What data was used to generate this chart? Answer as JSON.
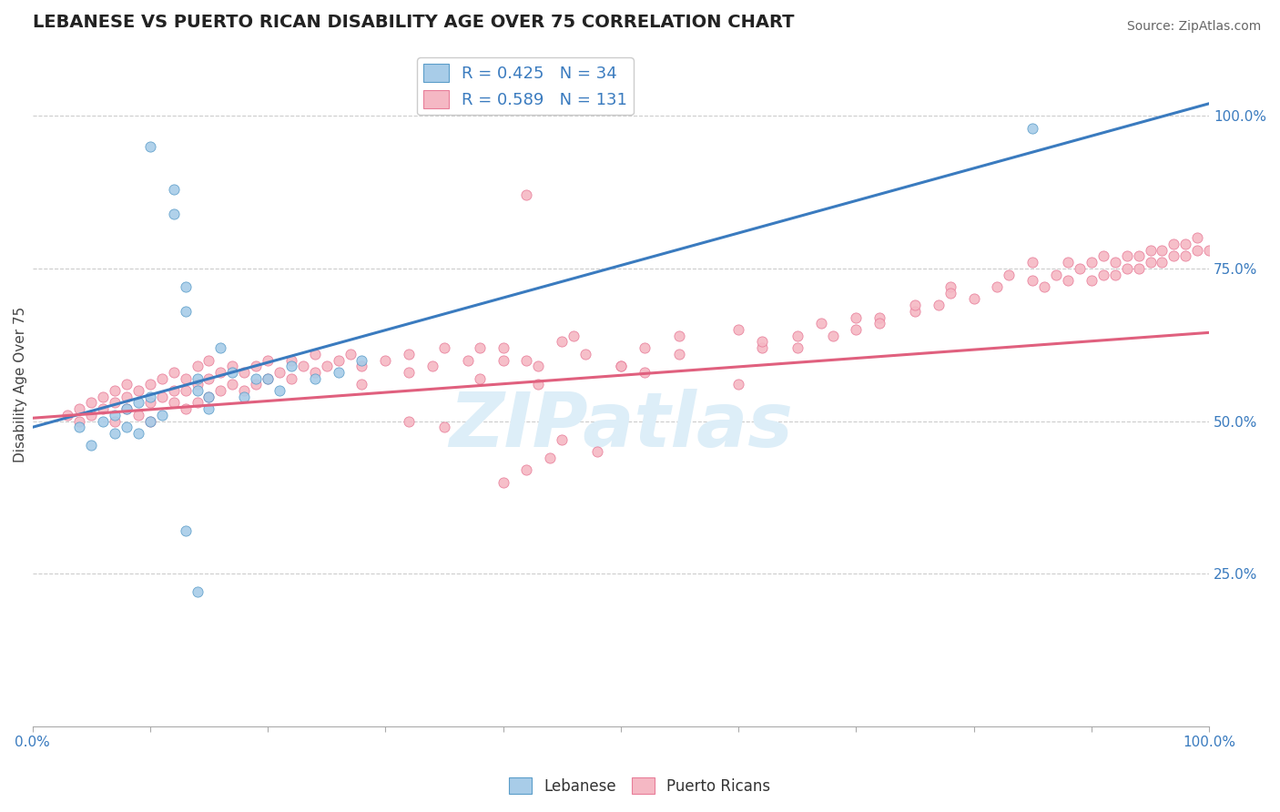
{
  "title": "LEBANESE VS PUERTO RICAN DISABILITY AGE OVER 75 CORRELATION CHART",
  "source": "Source: ZipAtlas.com",
  "ylabel": "Disability Age Over 75",
  "xlim": [
    0.0,
    1.0
  ],
  "ylim": [
    0.0,
    1.12
  ],
  "y_ticks_right": [
    0.25,
    0.5,
    0.75,
    1.0
  ],
  "y_tick_labels_right": [
    "25.0%",
    "50.0%",
    "75.0%",
    "100.0%"
  ],
  "x_ticks": [
    0.0,
    0.1,
    0.2,
    0.3,
    0.4,
    0.5,
    0.6,
    0.7,
    0.8,
    0.9,
    1.0
  ],
  "x_tick_labels": [
    "0.0%",
    "",
    "",
    "",
    "",
    "",
    "",
    "",
    "",
    "",
    "100.0%"
  ],
  "legend_blue_label": "R = 0.425   N = 34",
  "legend_pink_label": "R = 0.589   N = 131",
  "lebanese_color": "#a8cce8",
  "lebanese_edge_color": "#5b9dc9",
  "puerto_rican_color": "#f5b8c4",
  "puerto_rican_edge_color": "#e87d99",
  "blue_line_color": "#3a7bbf",
  "pink_line_color": "#e0607e",
  "watermark": "ZIPatlas",
  "watermark_color": "#ddeef8",
  "title_fontsize": 14,
  "label_fontsize": 11,
  "tick_fontsize": 11,
  "legend_fontsize": 13,
  "blue_line_x": [
    0.0,
    1.0
  ],
  "blue_line_y": [
    0.49,
    1.02
  ],
  "pink_line_x": [
    0.0,
    1.0
  ],
  "pink_line_y": [
    0.505,
    0.645
  ],
  "lebanese_points_x": [
    0.04,
    0.05,
    0.06,
    0.07,
    0.07,
    0.08,
    0.08,
    0.09,
    0.09,
    0.1,
    0.1,
    0.11,
    0.12,
    0.12,
    0.13,
    0.13,
    0.14,
    0.14,
    0.15,
    0.15,
    0.16,
    0.17,
    0.18,
    0.19,
    0.2,
    0.21,
    0.22,
    0.24,
    0.26,
    0.28,
    0.13,
    0.14,
    0.85,
    0.1
  ],
  "lebanese_points_y": [
    0.49,
    0.46,
    0.5,
    0.48,
    0.51,
    0.52,
    0.49,
    0.53,
    0.48,
    0.5,
    0.54,
    0.51,
    0.88,
    0.84,
    0.72,
    0.68,
    0.55,
    0.57,
    0.52,
    0.54,
    0.62,
    0.58,
    0.54,
    0.57,
    0.57,
    0.55,
    0.59,
    0.57,
    0.58,
    0.6,
    0.32,
    0.22,
    0.98,
    0.95
  ],
  "puerto_rican_points_x": [
    0.03,
    0.04,
    0.04,
    0.05,
    0.05,
    0.06,
    0.06,
    0.07,
    0.07,
    0.07,
    0.08,
    0.08,
    0.08,
    0.09,
    0.09,
    0.1,
    0.1,
    0.1,
    0.11,
    0.11,
    0.12,
    0.12,
    0.12,
    0.13,
    0.13,
    0.13,
    0.14,
    0.14,
    0.14,
    0.15,
    0.15,
    0.15,
    0.16,
    0.16,
    0.17,
    0.17,
    0.18,
    0.18,
    0.19,
    0.19,
    0.2,
    0.2,
    0.21,
    0.22,
    0.22,
    0.23,
    0.24,
    0.24,
    0.25,
    0.26,
    0.27,
    0.28,
    0.3,
    0.32,
    0.34,
    0.35,
    0.37,
    0.38,
    0.4,
    0.42,
    0.43,
    0.45,
    0.47,
    0.5,
    0.52,
    0.55,
    0.6,
    0.62,
    0.65,
    0.67,
    0.7,
    0.72,
    0.75,
    0.77,
    0.78,
    0.8,
    0.82,
    0.83,
    0.85,
    0.85,
    0.86,
    0.87,
    0.88,
    0.88,
    0.89,
    0.9,
    0.9,
    0.91,
    0.91,
    0.92,
    0.92,
    0.93,
    0.93,
    0.94,
    0.94,
    0.95,
    0.95,
    0.96,
    0.96,
    0.97,
    0.97,
    0.98,
    0.98,
    0.99,
    0.99,
    1.0,
    0.28,
    0.32,
    0.38,
    0.4,
    0.43,
    0.46,
    0.5,
    0.55,
    0.62,
    0.7,
    0.4,
    0.42,
    0.44,
    0.35,
    0.45,
    0.48,
    0.42,
    0.32,
    0.52,
    0.6,
    0.65,
    0.68,
    0.72,
    0.75,
    0.78
  ],
  "puerto_rican_points_y": [
    0.51,
    0.5,
    0.52,
    0.51,
    0.53,
    0.52,
    0.54,
    0.5,
    0.53,
    0.55,
    0.52,
    0.54,
    0.56,
    0.51,
    0.55,
    0.5,
    0.53,
    0.56,
    0.54,
    0.57,
    0.53,
    0.55,
    0.58,
    0.52,
    0.55,
    0.57,
    0.53,
    0.56,
    0.59,
    0.54,
    0.57,
    0.6,
    0.55,
    0.58,
    0.56,
    0.59,
    0.55,
    0.58,
    0.56,
    0.59,
    0.57,
    0.6,
    0.58,
    0.57,
    0.6,
    0.59,
    0.58,
    0.61,
    0.59,
    0.6,
    0.61,
    0.59,
    0.6,
    0.61,
    0.59,
    0.62,
    0.6,
    0.57,
    0.62,
    0.6,
    0.56,
    0.63,
    0.61,
    0.59,
    0.62,
    0.64,
    0.65,
    0.62,
    0.64,
    0.66,
    0.65,
    0.67,
    0.68,
    0.69,
    0.72,
    0.7,
    0.72,
    0.74,
    0.73,
    0.76,
    0.72,
    0.74,
    0.73,
    0.76,
    0.75,
    0.73,
    0.76,
    0.74,
    0.77,
    0.74,
    0.76,
    0.75,
    0.77,
    0.75,
    0.77,
    0.76,
    0.78,
    0.76,
    0.78,
    0.77,
    0.79,
    0.77,
    0.79,
    0.78,
    0.8,
    0.78,
    0.56,
    0.58,
    0.62,
    0.6,
    0.59,
    0.64,
    0.59,
    0.61,
    0.63,
    0.67,
    0.4,
    0.42,
    0.44,
    0.49,
    0.47,
    0.45,
    0.87,
    0.5,
    0.58,
    0.56,
    0.62,
    0.64,
    0.66,
    0.69,
    0.71
  ]
}
